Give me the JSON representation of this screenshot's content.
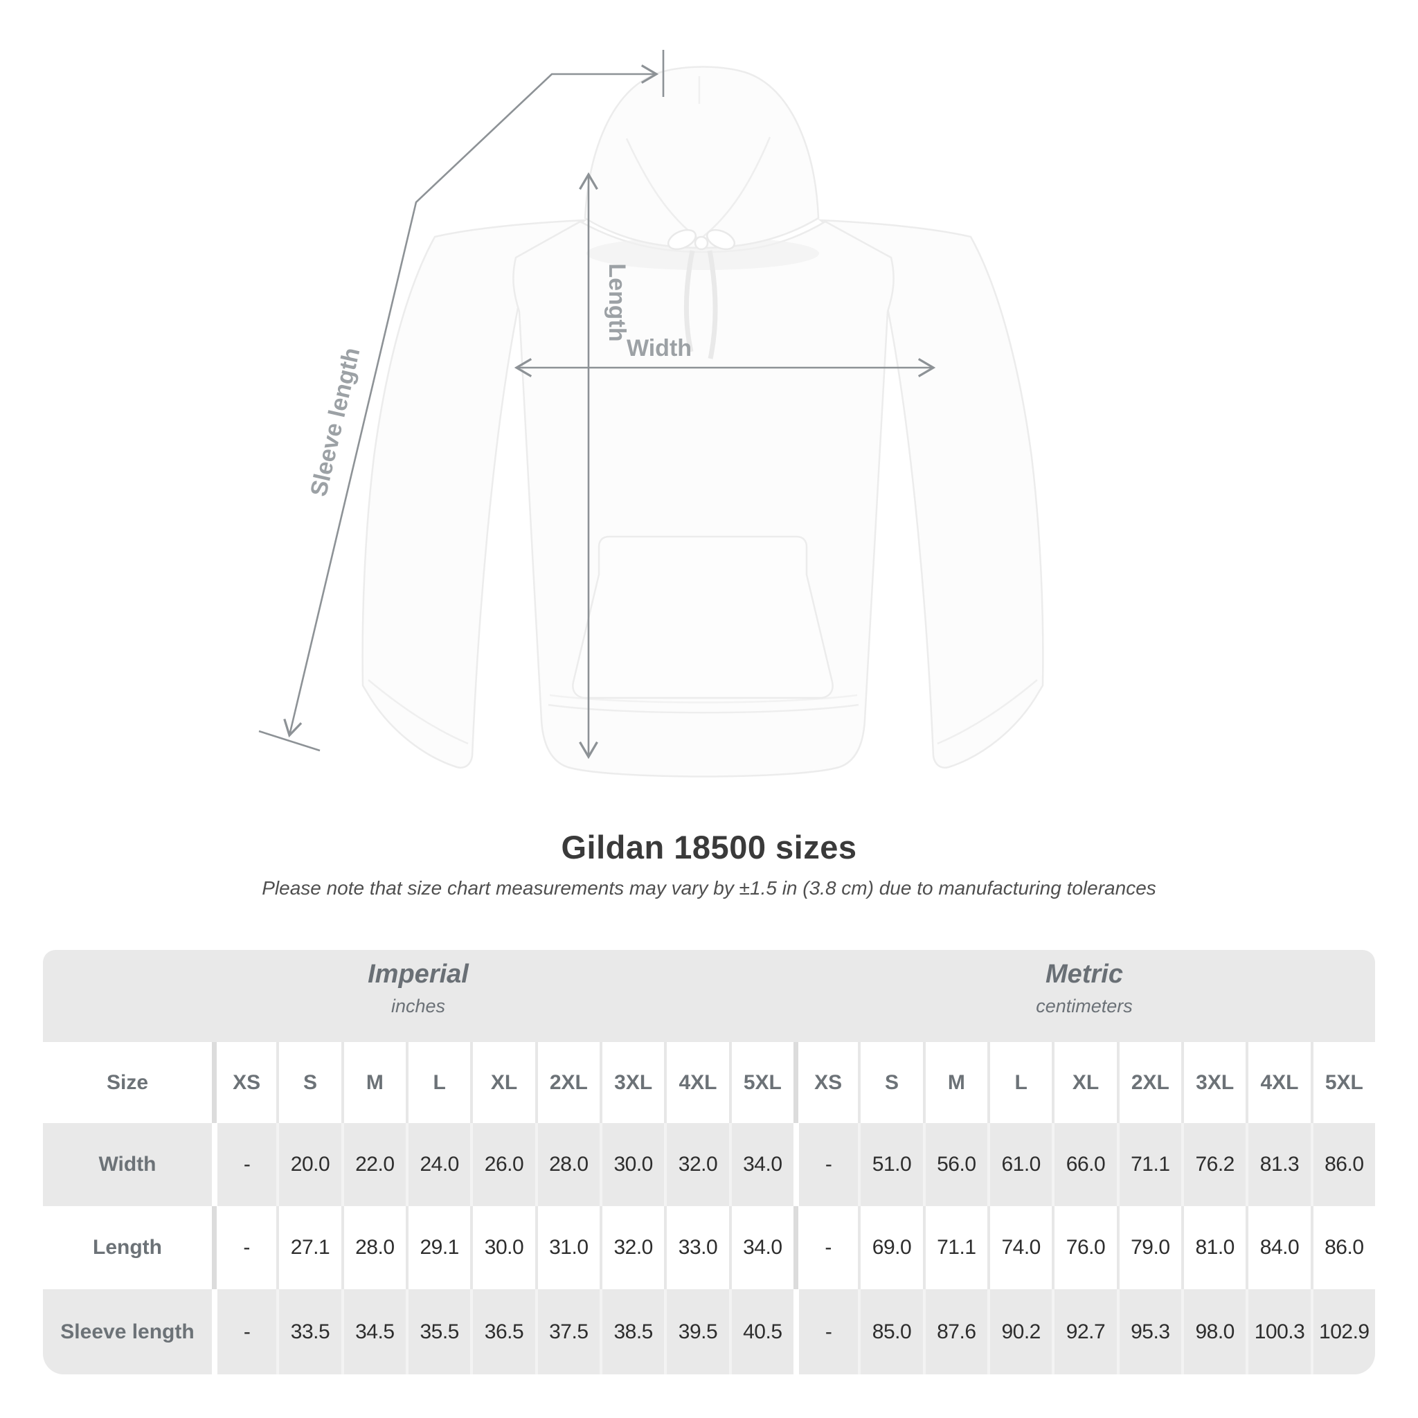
{
  "heading": {
    "title": "Gildan 18500 sizes",
    "subtitle": "Please note that size chart measurements may vary by ±1.5 in (3.8 cm) due to manufacturing tolerances"
  },
  "diagram": {
    "length_label": "Length",
    "width_label": "Width",
    "sleeve_label": "Sleeve length",
    "line_color": "#8d9296",
    "label_color": "#9ca1a5"
  },
  "chart_data": {
    "type": "table",
    "title": "Gildan 18500 sizes",
    "unit_groups": [
      {
        "label": "Imperial",
        "sublabel": "inches"
      },
      {
        "label": "Metric",
        "sublabel": "centimeters"
      }
    ],
    "size_header": "Size",
    "sizes": [
      "XS",
      "S",
      "M",
      "L",
      "XL",
      "2XL",
      "3XL",
      "4XL",
      "5XL"
    ],
    "rows": [
      {
        "label": "Width",
        "imperial": [
          "-",
          "20.0",
          "22.0",
          "24.0",
          "26.0",
          "28.0",
          "30.0",
          "32.0",
          "34.0"
        ],
        "metric": [
          "-",
          "51.0",
          "56.0",
          "61.0",
          "66.0",
          "71.1",
          "76.2",
          "81.3",
          "86.0"
        ]
      },
      {
        "label": "Length",
        "imperial": [
          "-",
          "27.1",
          "28.0",
          "29.1",
          "30.0",
          "31.0",
          "32.0",
          "33.0",
          "34.0"
        ],
        "metric": [
          "-",
          "69.0",
          "71.1",
          "74.0",
          "76.0",
          "79.0",
          "81.0",
          "84.0",
          "86.0"
        ]
      },
      {
        "label": "Sleeve length",
        "imperial": [
          "-",
          "33.5",
          "34.5",
          "35.5",
          "36.5",
          "37.5",
          "38.5",
          "39.5",
          "40.5"
        ],
        "metric": [
          "-",
          "85.0",
          "87.6",
          "90.2",
          "92.7",
          "95.3",
          "98.0",
          "100.3",
          "102.9"
        ]
      }
    ],
    "colors": {
      "header_band": "#e9e9e9",
      "row_shade": "#e9e9e9",
      "value_text": "#2d2d2d",
      "label_text": "#6c7277"
    }
  }
}
